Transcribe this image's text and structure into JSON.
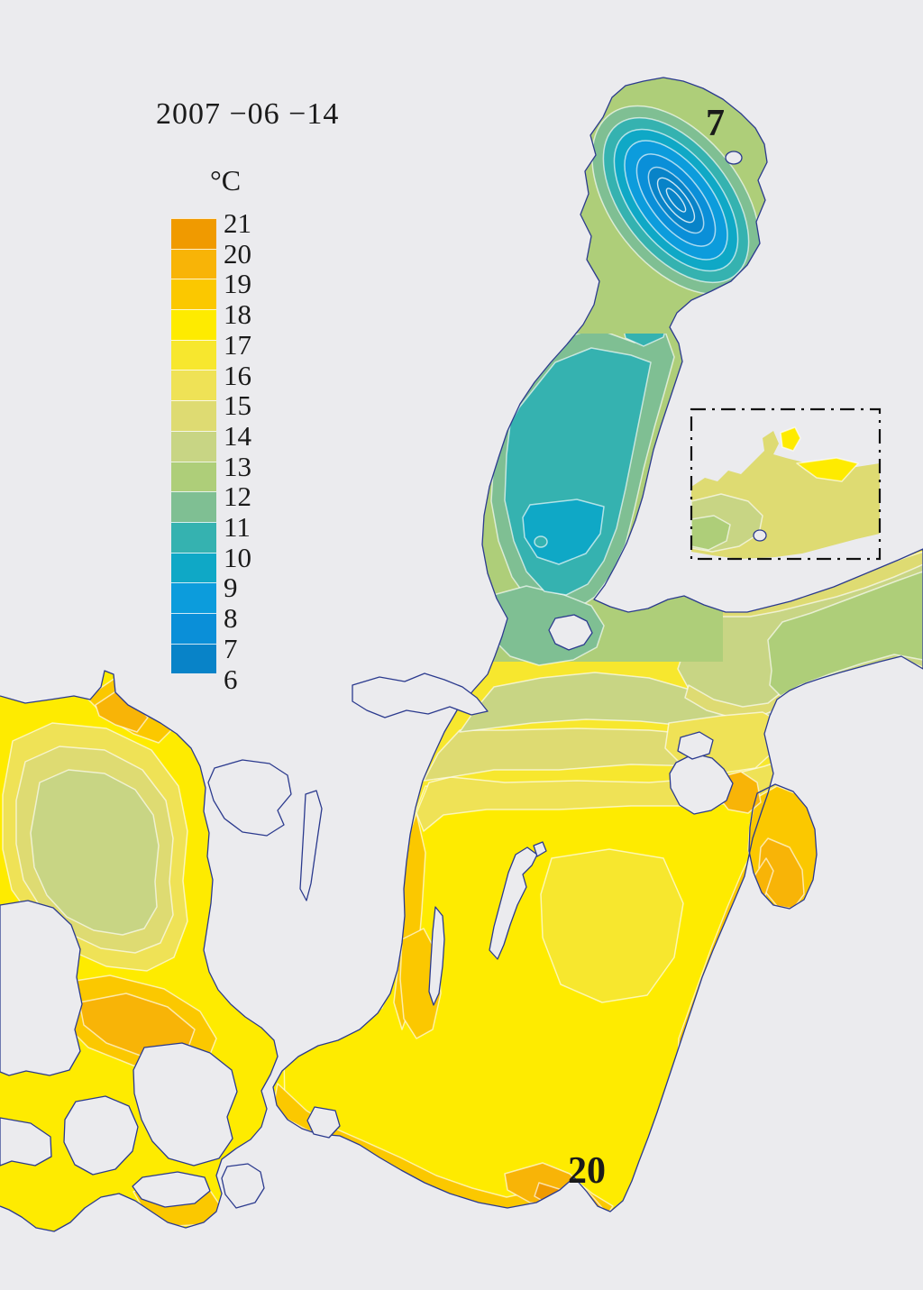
{
  "title": {
    "date": "2007 −06 −14"
  },
  "legend": {
    "unit": "°C",
    "entries": [
      {
        "label": "21",
        "color": "#F09A00"
      },
      {
        "label": "20",
        "color": "#F8B407"
      },
      {
        "label": "19",
        "color": "#FBC800"
      },
      {
        "label": "18",
        "color": "#FEEB00"
      },
      {
        "label": "17",
        "color": "#F7E72E"
      },
      {
        "label": "16",
        "color": "#EFE256"
      },
      {
        "label": "15",
        "color": "#DEDB72"
      },
      {
        "label": "14",
        "color": "#C8D584"
      },
      {
        "label": "13",
        "color": "#AECE79"
      },
      {
        "label": "12",
        "color": "#7FBF93"
      },
      {
        "label": "11",
        "color": "#35B2B0"
      },
      {
        "label": "10",
        "color": "#0FA8C6"
      },
      {
        "label": "9",
        "color": "#0C9CDC"
      },
      {
        "label": "8",
        "color": "#0A8FD8"
      },
      {
        "label": "7",
        "color": "#0883C8"
      },
      {
        "label": "6",
        "color": null
      }
    ]
  },
  "annotations": {
    "bothnian_bay_min": "7",
    "south_baltic_max": "20"
  },
  "map_colors": {
    "background": "#EBEBEE",
    "coastline": "#2B3A8E",
    "contour": "#FFFFFF",
    "text": "#1a1a1a"
  }
}
